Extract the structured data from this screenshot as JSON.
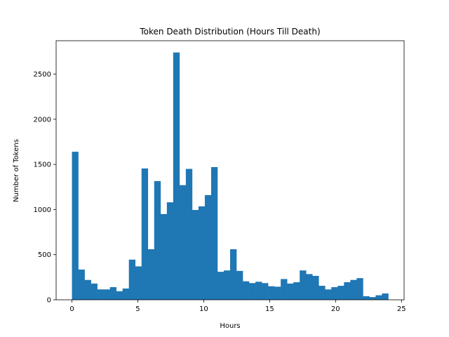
{
  "chart_data": {
    "type": "bar",
    "title": "Token Death Distribution (Hours Till Death)",
    "xlabel": "Hours",
    "ylabel": "Number of Tokens",
    "bar_color": "#1f77b4",
    "bin_start": 0,
    "bin_width": 0.48,
    "xlim": [
      -1.2,
      25.2
    ],
    "ylim": [
      0,
      2870
    ],
    "x_ticks": [
      0,
      5,
      10,
      15,
      20,
      25
    ],
    "y_ticks": [
      0,
      500,
      1000,
      1500,
      2000,
      2500
    ],
    "x_tick_labels": [
      "0",
      "5",
      "10",
      "15",
      "20",
      "25"
    ],
    "y_tick_labels": [
      "0",
      "500",
      "1000",
      "1500",
      "2000",
      "2500"
    ],
    "values": [
      1640,
      335,
      220,
      180,
      115,
      115,
      140,
      95,
      125,
      445,
      370,
      1455,
      560,
      1315,
      950,
      1080,
      2740,
      1270,
      1450,
      995,
      1035,
      1160,
      1470,
      310,
      325,
      560,
      320,
      205,
      185,
      200,
      185,
      150,
      145,
      230,
      180,
      195,
      325,
      285,
      265,
      155,
      115,
      140,
      155,
      195,
      220,
      240,
      40,
      30,
      50,
      70
    ]
  }
}
